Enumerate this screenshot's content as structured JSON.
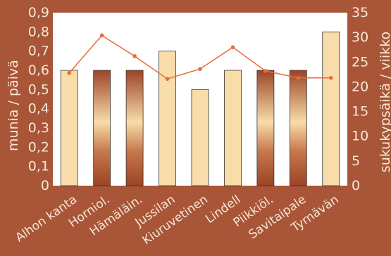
{
  "chart_data": {
    "type": "bar",
    "categories": [
      "Alhon kanta",
      "Horniol.",
      "Hämäläin.",
      "Jussilan",
      "Kiuruvetinen",
      "Lindell",
      "Piikkiöl.",
      "Savitaipale",
      "Tyrnävän"
    ],
    "series": [
      {
        "values": [
          0.6,
          0.6,
          0.6,
          0.7,
          0.5,
          0.6,
          0.6,
          0.6,
          0.8
        ],
        "axis": "left",
        "type": "bar"
      },
      {
        "values": [
          22.8,
          30.4,
          26.2,
          21.6,
          23.6,
          28.0,
          23.2,
          21.8,
          21.8
        ],
        "axis": "right",
        "type": "line"
      }
    ],
    "bar_styles": [
      "light",
      "gradient",
      "gradient",
      "light",
      "light",
      "light",
      "gradient",
      "gradient",
      "light"
    ],
    "ylabel": "munia / päivä",
    "y2label": "sukukypsäikä / viikko",
    "ylim": [
      0,
      0.9
    ],
    "y2lim": [
      0,
      35
    ],
    "yticks": [
      "0",
      "0,1",
      "0,2",
      "0,3",
      "0,4",
      "0,5",
      "0,6",
      "0,7",
      "0,8",
      "0,9"
    ],
    "y2ticks": [
      "0",
      "5",
      "10",
      "15",
      "20",
      "25",
      "30",
      "35"
    ],
    "colors": {
      "background": "#a85538",
      "plot_bg": "#ffffff",
      "bar_light": "#f8dcaa",
      "bar_dark": "#9c4326",
      "line": "#e86a3a",
      "text": "#f6e7d6"
    }
  }
}
